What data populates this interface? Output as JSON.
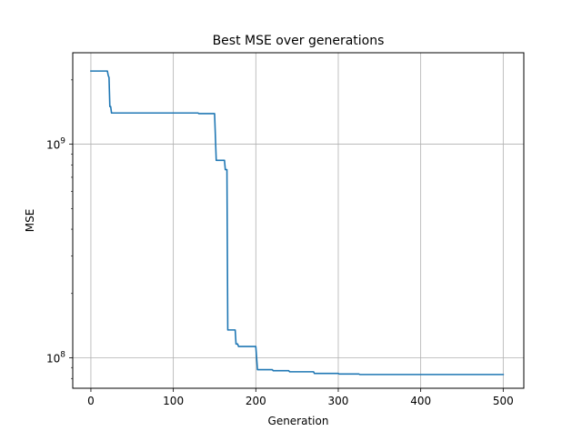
{
  "chart_data": {
    "type": "line",
    "title": "Best MSE over generations",
    "xlabel": "Generation",
    "ylabel": "MSE",
    "xlim": [
      -22,
      525
    ],
    "ylim": [
      72000000,
      2680000000
    ],
    "yscale": "log",
    "grid": true,
    "x_ticks": [
      {
        "value": 0,
        "label": "0"
      },
      {
        "value": 100,
        "label": "100"
      },
      {
        "value": 200,
        "label": "200"
      },
      {
        "value": 300,
        "label": "300"
      },
      {
        "value": 400,
        "label": "400"
      },
      {
        "value": 500,
        "label": "500"
      }
    ],
    "y_ticks": [
      {
        "value": 100000000,
        "base": "10",
        "exp": "8"
      },
      {
        "value": 1000000000,
        "base": "10",
        "exp": "9"
      }
    ],
    "series": [
      {
        "color": "#1f77b4",
        "x": [
          0,
          20,
          21,
          22,
          23,
          24,
          25,
          26,
          130,
          131,
          150,
          152,
          162,
          163,
          165,
          166,
          167,
          175,
          176,
          178,
          179,
          200,
          201,
          202,
          203,
          220,
          221,
          240,
          241,
          270,
          271,
          300,
          301,
          325,
          326,
          500
        ],
        "y": [
          2200000000,
          2200000000,
          2100000000,
          2050000000,
          1500000000,
          1500000000,
          1400000000,
          1400000000,
          1400000000,
          1390000000,
          1390000000,
          840000000,
          840000000,
          760000000,
          760000000,
          135000000,
          135000000,
          135000000,
          116000000,
          116000000,
          113000000,
          113000000,
          100000000,
          88000000,
          88000000,
          88000000,
          87000000,
          87000000,
          86000000,
          86000000,
          84500000,
          84500000,
          84000000,
          84000000,
          83500000,
          83500000
        ]
      }
    ]
  }
}
